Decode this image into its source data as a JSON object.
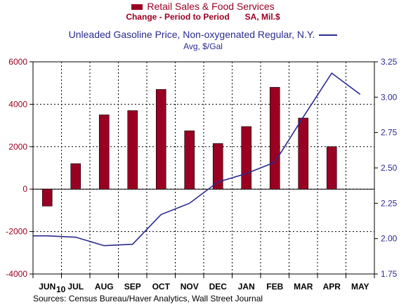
{
  "legend": {
    "series1_title": "Retail Sales & Food Services",
    "series1_sub_a": "Change - Period to Period",
    "series1_sub_b": "SA, Mil.$",
    "series2_title": "Unleaded Gasoline Price, Non-oxygenated Regular, N.Y.",
    "series2_sub": "Avg, $/Gal"
  },
  "year_label": "10",
  "source": "Sources:  Census Bureau/Haver Analytics, Wall Street Journal",
  "colors": {
    "bars": "#990022",
    "line": "#2a2a90",
    "axis": "#000000"
  },
  "chart_data": {
    "type": "bar",
    "categories": [
      "JUN",
      "JUL",
      "AUG",
      "SEP",
      "OCT",
      "NOV",
      "DEC",
      "JAN",
      "FEB",
      "MAR",
      "APR",
      "MAY"
    ],
    "series": [
      {
        "name": "Retail Sales & Food Services",
        "type": "bar",
        "axis": "left",
        "values": [
          -800,
          1200,
          3500,
          3700,
          4700,
          2750,
          2150,
          2950,
          4800,
          3350,
          2000,
          null
        ]
      },
      {
        "name": "Unleaded Gasoline Price, Non-oxygenated Regular, N.Y.",
        "type": "line",
        "axis": "right",
        "values": [
          2.02,
          2.01,
          1.95,
          1.96,
          2.17,
          2.25,
          2.4,
          2.46,
          2.54,
          2.86,
          3.17,
          3.02
        ]
      }
    ],
    "y_left": {
      "ylim": [
        -4000,
        6000
      ],
      "ticks": [
        -4000,
        -2000,
        0,
        2000,
        4000,
        6000
      ]
    },
    "y_right": {
      "ylim": [
        1.75,
        3.25
      ],
      "ticks": [
        1.75,
        2.0,
        2.25,
        2.5,
        2.75,
        3.0,
        3.25
      ]
    },
    "grid": true
  }
}
